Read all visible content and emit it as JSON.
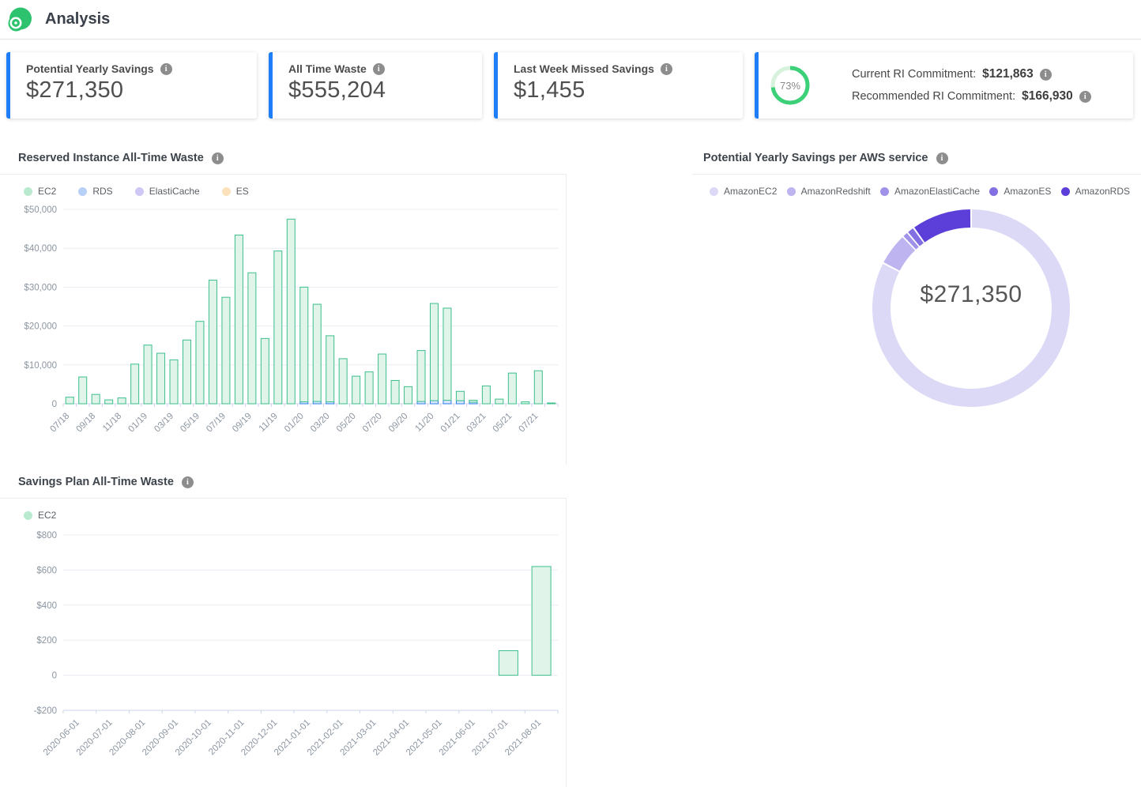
{
  "header": {
    "title": "Analysis"
  },
  "ui": {
    "info_icon_glyph": "i"
  },
  "colors": {
    "accent_blue": "#1e7ef7",
    "ring_green": "#3cd078",
    "ring_track": "#d6f2dd",
    "logo_green": "#2cc26e",
    "axis_line": "#ccd6eb",
    "grid_line": "#e9edf2"
  },
  "cards": [
    {
      "label": "Potential Yearly Savings",
      "value": "$271,350"
    },
    {
      "label": "All Time Waste",
      "value": "$555,204"
    },
    {
      "label": "Last Week Missed Savings",
      "value": "$1,455"
    },
    {
      "ring_percent": 73,
      "ring_percent_label": "73%",
      "lines": [
        {
          "label": "Current RI Commitment:",
          "value": "$121,863"
        },
        {
          "label": "Recommended RI Commitment:",
          "value": "$166,930"
        }
      ]
    }
  ],
  "chart_data": [
    {
      "id": "ri_waste",
      "type": "bar",
      "title": "Reserved Instance All-Time Waste",
      "stacked": true,
      "legend_position": "top-left",
      "grid": true,
      "ylim": [
        0,
        50000
      ],
      "y_ticks": [
        {
          "value": 50000,
          "label": "$50,000"
        },
        {
          "value": 40000,
          "label": "$40,000"
        },
        {
          "value": 30000,
          "label": "$30,000"
        },
        {
          "value": 20000,
          "label": "$20,000"
        },
        {
          "value": 10000,
          "label": "$10,000"
        },
        {
          "value": 0,
          "label": "0"
        }
      ],
      "categories": [
        "07/18",
        "08/18",
        "09/18",
        "10/18",
        "11/18",
        "12/18",
        "01/19",
        "02/19",
        "03/19",
        "04/19",
        "05/19",
        "06/19",
        "07/19",
        "08/19",
        "09/19",
        "10/19",
        "11/19",
        "12/19",
        "01/20",
        "02/20",
        "03/20",
        "04/20",
        "05/20",
        "06/20",
        "07/20",
        "08/20",
        "09/20",
        "10/20",
        "11/20",
        "12/20",
        "01/21",
        "02/21",
        "03/21",
        "04/21",
        "05/21",
        "06/21",
        "07/21",
        "08/21"
      ],
      "x_label_every": 2,
      "series": [
        {
          "name": "EC2",
          "dot": "#b9e9cf",
          "stroke": "#3cbf8d",
          "fill": "#e0f4ea",
          "values": [
            1700,
            6900,
            2400,
            1000,
            1500,
            10200,
            15100,
            13000,
            11300,
            16400,
            21200,
            31800,
            27400,
            43400,
            33700,
            16800,
            39300,
            47500,
            29500,
            25000,
            17000,
            11600,
            7100,
            8200,
            12800,
            6000,
            4400,
            13100,
            25000,
            23700,
            2400,
            500,
            4600,
            1200,
            7900,
            500,
            8500,
            200
          ]
        },
        {
          "name": "RDS",
          "dot": "#b7d0f7",
          "stroke": "#2d7ff0",
          "fill": "#d8e7fc",
          "values": [
            0,
            0,
            0,
            0,
            0,
            0,
            0,
            0,
            0,
            0,
            0,
            0,
            0,
            0,
            0,
            0,
            0,
            0,
            500,
            600,
            500,
            0,
            0,
            0,
            0,
            0,
            0,
            600,
            800,
            900,
            800,
            400,
            0,
            0,
            0,
            0,
            0,
            0
          ]
        },
        {
          "name": "ElastiCache",
          "dot": "#cfc7f5",
          "stroke": "#8a75e8",
          "fill": "#e6e0fa",
          "values": [
            0,
            0,
            0,
            0,
            0,
            0,
            0,
            0,
            0,
            0,
            0,
            0,
            0,
            0,
            0,
            0,
            0,
            0,
            0,
            0,
            0,
            0,
            0,
            0,
            0,
            0,
            0,
            0,
            0,
            0,
            0,
            0,
            0,
            0,
            0,
            0,
            0,
            0
          ]
        },
        {
          "name": "ES",
          "dot": "#fbe2ba",
          "stroke": "#f5b151",
          "fill": "#fdeccf",
          "values": [
            0,
            0,
            0,
            0,
            0,
            0,
            0,
            0,
            0,
            0,
            0,
            0,
            0,
            0,
            0,
            0,
            0,
            0,
            0,
            0,
            0,
            0,
            0,
            0,
            0,
            0,
            0,
            0,
            0,
            0,
            0,
            0,
            0,
            0,
            0,
            0,
            0,
            0
          ]
        }
      ]
    },
    {
      "id": "savings_per_service",
      "type": "pie",
      "title": "Potential Yearly Savings per AWS service",
      "center_label": "$271,350",
      "total": 271350,
      "legend_position": "top",
      "segments": [
        {
          "name": "AmazonEC2",
          "value": 224000,
          "color": "#dcd9f6"
        },
        {
          "name": "AmazonRedshift",
          "value": 14500,
          "color": "#bdb4f0"
        },
        {
          "name": "AmazonElastiCache",
          "value": 2600,
          "color": "#a092e9"
        },
        {
          "name": "AmazonES",
          "value": 3400,
          "color": "#8270e3"
        },
        {
          "name": "AmazonRDS",
          "value": 26850,
          "color": "#5b3fd8"
        }
      ]
    },
    {
      "id": "sp_waste",
      "type": "bar",
      "title": "Savings Plan All-Time Waste",
      "stacked": false,
      "legend_position": "top-left",
      "grid": true,
      "ylim": [
        -200,
        800
      ],
      "y_ticks": [
        {
          "value": 800,
          "label": "$800"
        },
        {
          "value": 600,
          "label": "$600"
        },
        {
          "value": 400,
          "label": "$400"
        },
        {
          "value": 200,
          "label": "$200"
        },
        {
          "value": 0,
          "label": "0"
        },
        {
          "value": -200,
          "label": "-$200"
        }
      ],
      "categories": [
        "2020-06-01",
        "2020-07-01",
        "2020-08-01",
        "2020-09-01",
        "2020-10-01",
        "2020-11-01",
        "2020-12-01",
        "2021-01-01",
        "2021-02-01",
        "2021-03-01",
        "2021-04-01",
        "2021-05-01",
        "2021-06-01",
        "2021-07-01",
        "2021-08-01"
      ],
      "x_label_every": 1,
      "series": [
        {
          "name": "EC2",
          "dot": "#b9e9cf",
          "stroke": "#3cbf8d",
          "fill": "#e0f4ea",
          "values": [
            0,
            0,
            0,
            0,
            0,
            0,
            0,
            0,
            0,
            0,
            0,
            0,
            0,
            140,
            620
          ]
        }
      ]
    }
  ]
}
